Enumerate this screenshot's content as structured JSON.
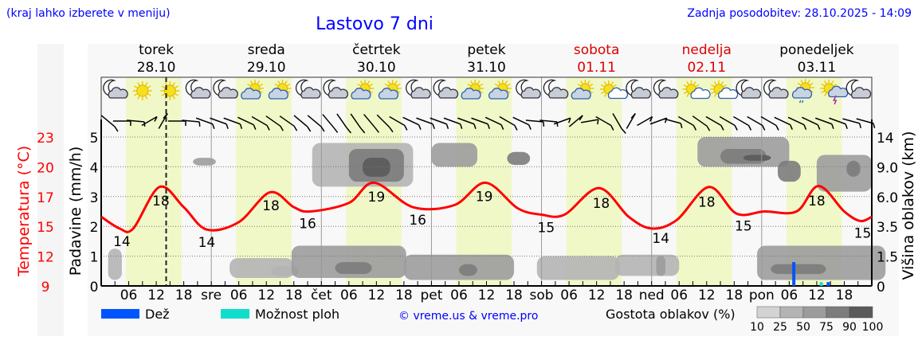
{
  "header": {
    "hint": "(kraj lahko izberete v meniju)",
    "title": "Lastovo 7 dni",
    "updated": "Zadnja posodobitev: 28.10.2025 - 14:09"
  },
  "colors": {
    "text_blue": "#0000ff",
    "temp": "#ff0000",
    "weekend": "#dd0000",
    "daylight": "#f0f8c8",
    "rain": "#0055ff",
    "shower": "#11ddcc"
  },
  "days": [
    {
      "name": "torek",
      "date": "28.10",
      "weekend": false,
      "abbr": ""
    },
    {
      "name": "sreda",
      "date": "29.10",
      "weekend": false,
      "abbr": "sre"
    },
    {
      "name": "četrtek",
      "date": "30.10",
      "weekend": false,
      "abbr": "čet"
    },
    {
      "name": "petek",
      "date": "31.10",
      "weekend": false,
      "abbr": "pet"
    },
    {
      "name": "sobota",
      "date": "01.11",
      "weekend": true,
      "abbr": "sob"
    },
    {
      "name": "nedelja",
      "date": "02.11",
      "weekend": true,
      "abbr": "ned"
    },
    {
      "name": "ponedeljek",
      "date": "03.11",
      "weekend": false,
      "abbr": "pon"
    }
  ],
  "hour_ticks": [
    "06",
    "12",
    "18"
  ],
  "axes": {
    "temp_label": "Temperatura (°C)",
    "temp_ticks": [
      "9",
      "12",
      "15",
      "17",
      "20",
      "23"
    ],
    "precip_label": "Padavine (mm/h)",
    "precip_ticks": [
      "0",
      "1",
      "2",
      "3",
      "4",
      "5"
    ],
    "cloud_label": "Višina oblakov (km)",
    "cloud_ticks": [
      "0",
      "1.5",
      "3.5",
      "6.0",
      "9.0",
      "14"
    ]
  },
  "legend": {
    "rain": "Dež",
    "shower": "Možnost ploh",
    "copyright": "© vreme.us & vreme.pro",
    "density_title": "Gostota oblakov (%)",
    "density_ticks": [
      "10",
      "25",
      "50",
      "75",
      "90",
      "100"
    ]
  },
  "chart_data": {
    "type": "line",
    "title": "Lastovo 7 dni",
    "x_unit": "hours from 28.10 00:00",
    "x_range": [
      0,
      168
    ],
    "now_hour": 14.15,
    "daylight_hours": [
      5.4,
      17.5
    ],
    "temperature": [
      [
        0,
        15.5
      ],
      [
        4,
        14.4
      ],
      [
        7,
        14.4
      ],
      [
        12.7,
        18.3
      ],
      [
        18,
        16.4
      ],
      [
        23,
        14.3
      ],
      [
        30,
        15.0
      ],
      [
        36.8,
        17.8
      ],
      [
        42,
        16.4
      ],
      [
        45.7,
        16.0
      ],
      [
        54,
        16.8
      ],
      [
        59.5,
        18.7
      ],
      [
        68,
        16.4
      ],
      [
        77,
        16.6
      ],
      [
        83.8,
        18.7
      ],
      [
        90.8,
        16.3
      ],
      [
        96,
        15.7
      ],
      [
        101,
        15.7
      ],
      [
        108.5,
        18.2
      ],
      [
        115,
        15.5
      ],
      [
        120,
        14.4
      ],
      [
        125.5,
        15.2
      ],
      [
        132.5,
        18.3
      ],
      [
        138.5,
        15.8
      ],
      [
        144.6,
        16.0
      ],
      [
        151.6,
        16.0
      ],
      [
        156.4,
        18.4
      ],
      [
        162,
        16.0
      ],
      [
        165.5,
        15.1
      ],
      [
        168,
        15.5
      ]
    ],
    "temp_labels": [
      [
        4.5,
        "14"
      ],
      [
        13,
        "18"
      ],
      [
        23,
        "14"
      ],
      [
        37,
        "18"
      ],
      [
        45,
        "16"
      ],
      [
        60,
        "19"
      ],
      [
        69,
        "16"
      ],
      [
        83.5,
        "19"
      ],
      [
        97,
        "15"
      ],
      [
        109,
        "18"
      ],
      [
        122,
        "14"
      ],
      [
        132,
        "18"
      ],
      [
        140,
        "15"
      ],
      [
        156,
        "18"
      ],
      [
        166,
        "15"
      ]
    ],
    "rain": [
      [
        151,
        0.8
      ]
    ],
    "showers": [
      [
        157,
        0.1
      ],
      [
        158.5,
        0.1
      ]
    ],
    "clouds": [
      [
        3,
        3,
        0.3,
        2.0,
        25
      ],
      [
        22.5,
        5,
        9.2,
        10.5,
        50
      ],
      [
        35,
        14,
        0.4,
        1.4,
        25
      ],
      [
        40,
        6,
        0.5,
        1.0,
        25
      ],
      [
        54,
        25,
        0.4,
        2.2,
        50
      ],
      [
        55,
        8,
        0.6,
        1.2,
        75
      ],
      [
        57,
        22,
        7,
        13,
        25
      ],
      [
        60,
        12,
        7.5,
        12,
        75
      ],
      [
        60,
        6,
        8,
        10.5,
        90
      ],
      [
        78,
        24,
        0.3,
        1.6,
        50
      ],
      [
        80,
        4,
        0.5,
        1.1,
        75
      ],
      [
        77,
        10,
        9,
        13,
        50
      ],
      [
        91,
        5,
        9.3,
        11.5,
        75
      ],
      [
        104,
        18,
        0.3,
        1.5,
        25
      ],
      [
        119,
        14,
        0.5,
        1.6,
        25
      ],
      [
        122,
        2,
        0.5,
        1.5,
        50
      ],
      [
        140,
        20,
        9,
        14,
        50
      ],
      [
        140,
        10,
        9.5,
        12,
        75
      ],
      [
        143,
        6,
        10,
        11,
        90
      ],
      [
        150,
        5,
        7.5,
        10,
        75
      ],
      [
        157,
        28,
        0.3,
        2.2,
        50
      ],
      [
        152,
        12,
        0.6,
        1.1,
        75
      ],
      [
        162,
        12,
        6.5,
        11,
        50
      ],
      [
        164,
        3,
        8,
        10,
        75
      ]
    ],
    "icons": [
      "moon-cloud",
      "sun",
      "sun",
      "moon-cloud",
      "moon-cloud",
      "sun-cloud",
      "sun-cloud",
      "moon-cloud",
      "moon-cloud",
      "sun-cloud",
      "sun-cloud",
      "moon-cloud",
      "moon-cloud",
      "sun-cloud",
      "sun-cloud",
      "moon-cloud",
      "moon-cloud",
      "sun-cloud",
      "sun-smallcloud",
      "moon-cloud",
      "moon-cloud",
      "sun-smallcloud",
      "sun-smallcloud",
      "moon-cloud",
      "moon-cloud",
      "sun-cloud-rain",
      "sun-storm",
      "moon-cloud"
    ],
    "wind_dir_angles": [
      40,
      0,
      5,
      -30,
      -60,
      0,
      5,
      20,
      20,
      20,
      25,
      30,
      35,
      35,
      40,
      40,
      50,
      55,
      55,
      50,
      45,
      30,
      25,
      20,
      20,
      20,
      20,
      20,
      25,
      30,
      25,
      5,
      5,
      -20,
      -40,
      -10,
      30,
      60,
      -60,
      -30,
      -20,
      15,
      30,
      35,
      30,
      30,
      30,
      30,
      30,
      25,
      25,
      25,
      20,
      20,
      15,
      15
    ]
  }
}
